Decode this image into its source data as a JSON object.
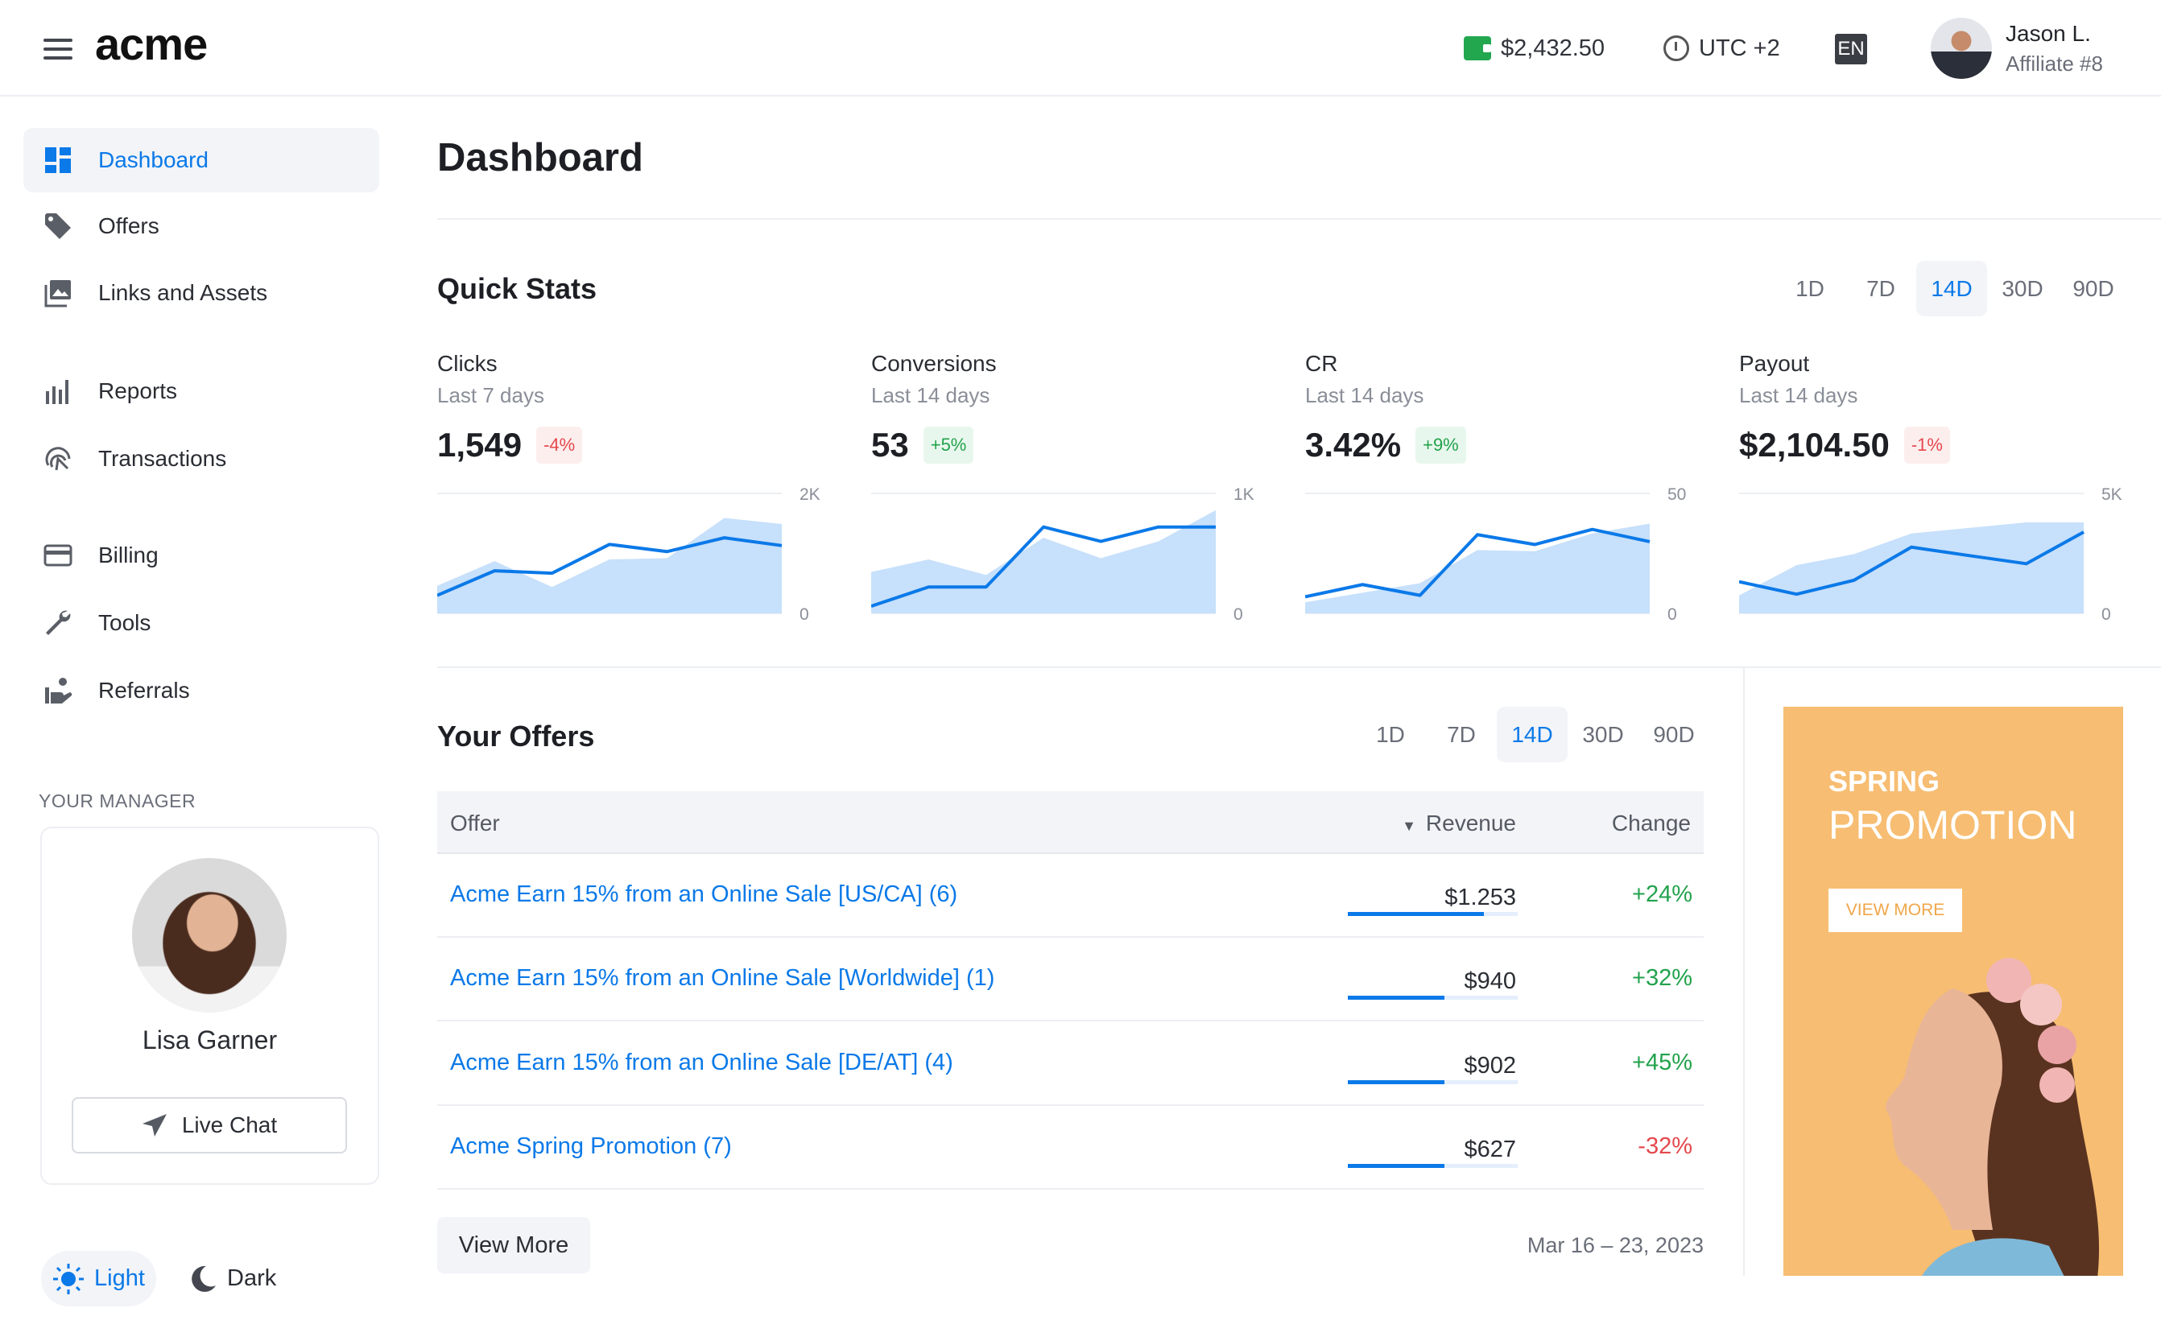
{
  "header": {
    "logo": "acme",
    "balance": "$2,432.50",
    "timezone": "UTC +2",
    "language": "EN",
    "user": {
      "name": "Jason L.",
      "role": "Affiliate #8"
    }
  },
  "sidebar": {
    "items": [
      {
        "label": "Dashboard",
        "icon": "dashboard-icon",
        "active": true
      },
      {
        "label": "Offers",
        "icon": "tag-icon"
      },
      {
        "label": "Links and Assets",
        "icon": "image-icon"
      },
      {
        "label": "Reports",
        "icon": "bar-chart-icon"
      },
      {
        "label": "Transactions",
        "icon": "fingerprint-icon"
      },
      {
        "label": "Billing",
        "icon": "credit-card-icon"
      },
      {
        "label": "Tools",
        "icon": "wrench-icon"
      },
      {
        "label": "Referrals",
        "icon": "referral-icon"
      }
    ],
    "manager": {
      "section_label": "YOUR MANAGER",
      "name": "Lisa Garner",
      "chat_label": "Live Chat"
    },
    "theme": {
      "light": "Light",
      "dark": "Dark"
    }
  },
  "page": {
    "title": "Dashboard"
  },
  "quick_stats": {
    "title": "Quick Stats",
    "ranges": [
      "1D",
      "7D",
      "14D",
      "30D",
      "90D"
    ],
    "active_range": "14D",
    "stats": [
      {
        "label": "Clicks",
        "period": "Last 7 days",
        "value": "1,549",
        "change": "-4%",
        "trend": "down"
      },
      {
        "label": "Conversions",
        "period": "Last 14 days",
        "value": "53",
        "change": "+5%",
        "trend": "up"
      },
      {
        "label": "CR",
        "period": "Last 14 days",
        "value": "3.42%",
        "change": "+9%",
        "trend": "up"
      },
      {
        "label": "Payout",
        "period": "Last 14 days",
        "value": "$2,104.50",
        "change": "-1%",
        "trend": "down"
      }
    ]
  },
  "chart_data": [
    {
      "type": "line",
      "title": "Clicks",
      "ylim": [
        0,
        2000
      ],
      "ytick_labels": [
        "2K",
        "0"
      ],
      "series": [
        {
          "name": "current",
          "values": [
            300,
            710,
            670,
            1150,
            1030,
            1260,
            1130
          ]
        },
        {
          "name": "previous",
          "type": "area",
          "values": [
            460,
            870,
            440,
            900,
            920,
            1590,
            1490
          ]
        }
      ]
    },
    {
      "type": "line",
      "title": "Conversions",
      "ylim": [
        0,
        1000
      ],
      "ytick_labels": [
        "1K",
        "0"
      ],
      "series": [
        {
          "name": "current",
          "values": [
            60,
            220,
            220,
            720,
            600,
            720,
            720
          ]
        },
        {
          "name": "previous",
          "type": "area",
          "values": [
            345,
            450,
            320,
            630,
            460,
            600,
            860
          ]
        }
      ]
    },
    {
      "type": "line",
      "title": "CR",
      "ylim": [
        0,
        50
      ],
      "ytick_labels": [
        "50",
        "0"
      ],
      "series": [
        {
          "name": "current",
          "values": [
            6.9,
            12,
            7.5,
            32.8,
            28.7,
            35,
            29.9
          ]
        },
        {
          "name": "previous",
          "type": "area",
          "values": [
            4.6,
            8.6,
            12.6,
            26.4,
            25.9,
            33.3,
            37.4
          ]
        }
      ]
    },
    {
      "type": "line",
      "title": "Payout",
      "ylim": [
        0,
        5000
      ],
      "ytick_labels": [
        "5K",
        "0"
      ],
      "series": [
        {
          "name": "current",
          "values": [
            1320,
            800,
            1380,
            2760,
            2410,
            2070,
            3390
          ]
        },
        {
          "name": "previous",
          "type": "area",
          "values": [
            750,
            2010,
            2470,
            3330,
            3560,
            3790,
            3790
          ]
        }
      ]
    }
  ],
  "offers": {
    "title": "Your Offers",
    "ranges": [
      "1D",
      "7D",
      "14D",
      "30D",
      "90D"
    ],
    "active_range": "14D",
    "columns": {
      "offer": "Offer",
      "revenue": "Revenue",
      "change": "Change"
    },
    "rows": [
      {
        "offer": "Acme Earn 15% from an Online Sale [US/CA] (6)",
        "revenue": "$1.253",
        "share": 0.8,
        "change": "+24%",
        "trend": "up"
      },
      {
        "offer": "Acme Earn 15% from an Online Sale [Worldwide] (1)",
        "revenue": "$940",
        "share": 0.57,
        "change": "+32%",
        "trend": "up"
      },
      {
        "offer": "Acme Earn 15% from an Online Sale [DE/AT] (4)",
        "revenue": "$902",
        "share": 0.57,
        "change": "+45%",
        "trend": "up"
      },
      {
        "offer": "Acme Spring Promotion (7)",
        "revenue": "$627",
        "share": 0.57,
        "change": "-32%",
        "trend": "down"
      }
    ],
    "view_more": "View More",
    "date_range": "Mar 16 – 23, 2023"
  },
  "promo": {
    "line1": "SPRING",
    "line2": "PROMOTION",
    "cta": "VIEW MORE"
  },
  "colors": {
    "accent": "#0b79e8",
    "up": "#22a24c",
    "down": "#e5484d",
    "promo": "#f7bd72"
  }
}
